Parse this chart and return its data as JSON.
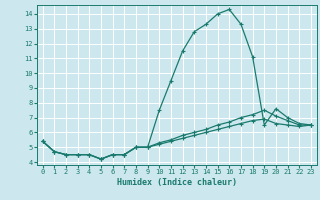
{
  "xlabel": "Humidex (Indice chaleur)",
  "bg_color": "#cce8ee",
  "grid_color": "#ffffff",
  "line_color": "#1a7a6e",
  "xlim": [
    -0.5,
    23.5
  ],
  "ylim": [
    3.8,
    14.6
  ],
  "xticks": [
    0,
    1,
    2,
    3,
    4,
    5,
    6,
    7,
    8,
    9,
    10,
    11,
    12,
    13,
    14,
    15,
    16,
    17,
    18,
    19,
    20,
    21,
    22,
    23
  ],
  "yticks": [
    4,
    5,
    6,
    7,
    8,
    9,
    10,
    11,
    12,
    13,
    14
  ],
  "line1_x": [
    0,
    1,
    2,
    3,
    4,
    5,
    6,
    7,
    8,
    9,
    10,
    11,
    12,
    13,
    14,
    15,
    16,
    17,
    18,
    19,
    20,
    21,
    22,
    23
  ],
  "line1_y": [
    5.4,
    4.7,
    4.5,
    4.5,
    4.5,
    4.2,
    4.5,
    4.5,
    5.0,
    5.0,
    7.5,
    9.5,
    11.5,
    12.8,
    13.3,
    14.0,
    14.3,
    13.3,
    11.1,
    6.5,
    7.6,
    7.0,
    6.6,
    6.5
  ],
  "line2_x": [
    0,
    1,
    2,
    3,
    4,
    5,
    6,
    7,
    8,
    9,
    10,
    11,
    12,
    13,
    14,
    15,
    16,
    17,
    18,
    19,
    20,
    21,
    22,
    23
  ],
  "line2_y": [
    5.4,
    4.7,
    4.5,
    4.5,
    4.5,
    4.2,
    4.5,
    4.5,
    5.0,
    5.0,
    5.3,
    5.5,
    5.8,
    6.0,
    6.2,
    6.5,
    6.7,
    7.0,
    7.2,
    7.5,
    7.1,
    6.8,
    6.5,
    6.5
  ],
  "line3_x": [
    0,
    1,
    2,
    3,
    4,
    5,
    6,
    7,
    8,
    9,
    10,
    11,
    12,
    13,
    14,
    15,
    16,
    17,
    18,
    19,
    20,
    21,
    22,
    23
  ],
  "line3_y": [
    5.4,
    4.7,
    4.5,
    4.5,
    4.5,
    4.2,
    4.5,
    4.5,
    5.0,
    5.0,
    5.2,
    5.4,
    5.6,
    5.8,
    6.0,
    6.2,
    6.4,
    6.6,
    6.8,
    6.9,
    6.6,
    6.5,
    6.4,
    6.5
  ],
  "marker": "+",
  "marker_size": 3,
  "line_width": 0.9,
  "tick_fontsize": 5.0,
  "xlabel_fontsize": 6.0
}
